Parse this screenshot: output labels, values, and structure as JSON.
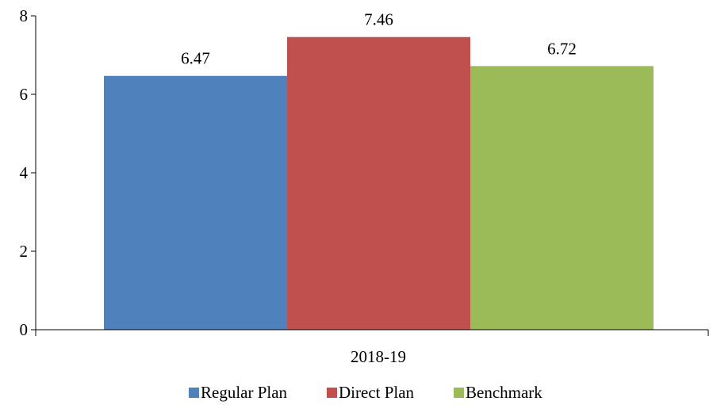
{
  "chart_data": {
    "type": "bar",
    "categories": [
      "2018-19"
    ],
    "series": [
      {
        "name": "Regular Plan",
        "values": [
          6.47
        ],
        "color": "#4F81BD"
      },
      {
        "name": "Direct Plan",
        "values": [
          7.46
        ],
        "color": "#C0504D"
      },
      {
        "name": "Benchmark",
        "values": [
          6.72
        ],
        "color": "#9BBB59"
      }
    ],
    "ylim": [
      0,
      8
    ],
    "yticks": [
      0,
      2,
      4,
      6,
      8
    ],
    "data_labels": [
      "6.47",
      "7.46",
      "6.72"
    ],
    "grid": false,
    "legend_position": "bottom"
  }
}
